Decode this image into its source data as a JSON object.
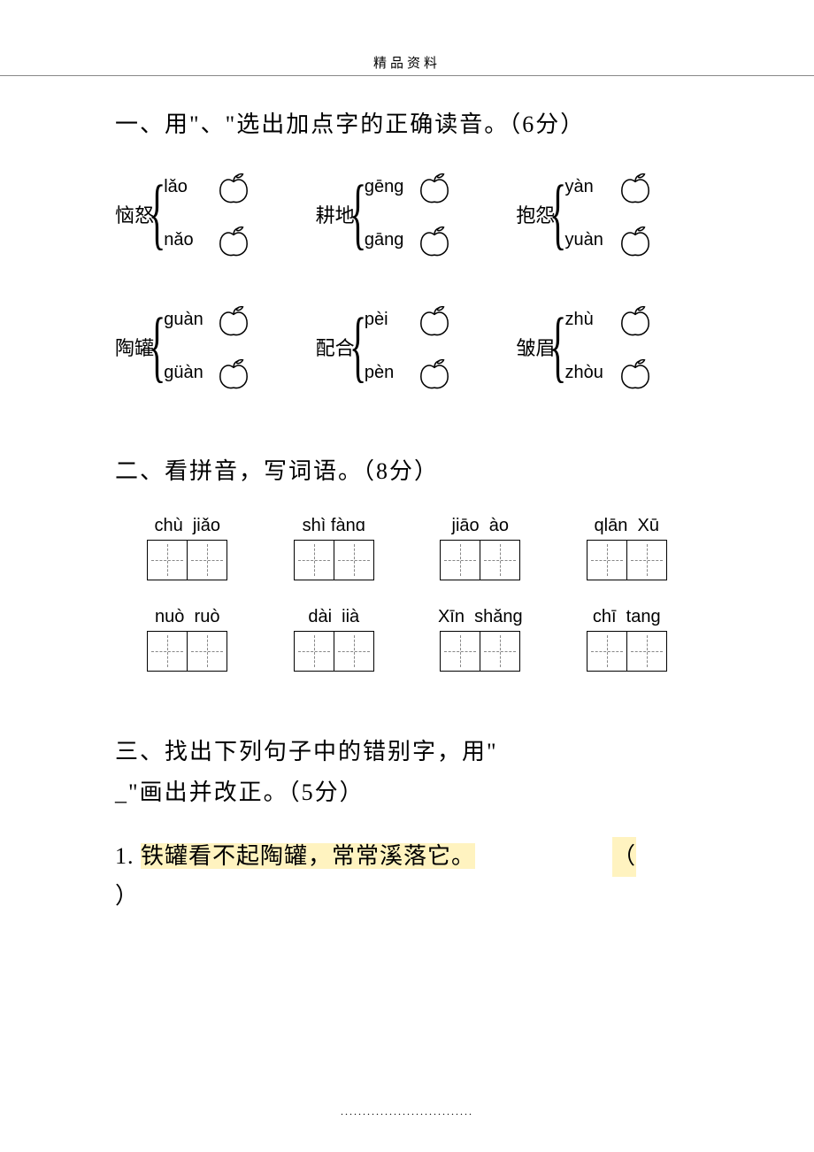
{
  "header": "精品资料",
  "footer": "..............................",
  "section1": {
    "title": "一、用\"、\"选出加点字的正确读音。（6分）",
    "items": [
      {
        "hanzi": "恼怒",
        "opts": [
          "lǎo",
          "nǎo"
        ]
      },
      {
        "hanzi": "耕地",
        "opts": [
          "gēng",
          "gāng"
        ]
      },
      {
        "hanzi": "抱怨",
        "opts": [
          "yàn",
          "yuàn"
        ]
      },
      {
        "hanzi": "陶罐",
        "opts": [
          "guàn",
          "güàn"
        ]
      },
      {
        "hanzi": "配合",
        "opts": [
          "pèi",
          "pèn"
        ]
      },
      {
        "hanzi": "皱眉",
        "opts": [
          "zhù",
          "zhòu"
        ]
      }
    ]
  },
  "section2": {
    "title": "二、看拼音，写词语。（8分）",
    "items": [
      "chù  jiǎo",
      "shì fànɑ",
      "jiāo  ào",
      "qlān  Xū",
      "nuò  ruò",
      "dài  iià",
      "Xīn  shǎng",
      "chī  tang"
    ]
  },
  "section3": {
    "title_line1": "三、找出下列句子中的错别字，用\"",
    "title_line2": "_\"画出并改正。（5分）",
    "q1_num": "1.",
    "q1_text": "铁罐看不起陶罐，常常溪落它。",
    "paren_open": "（",
    "paren_close": "）"
  },
  "colors": {
    "highlight": "#fff3c0",
    "text": "#000000",
    "background": "#ffffff",
    "dash": "#888888"
  }
}
